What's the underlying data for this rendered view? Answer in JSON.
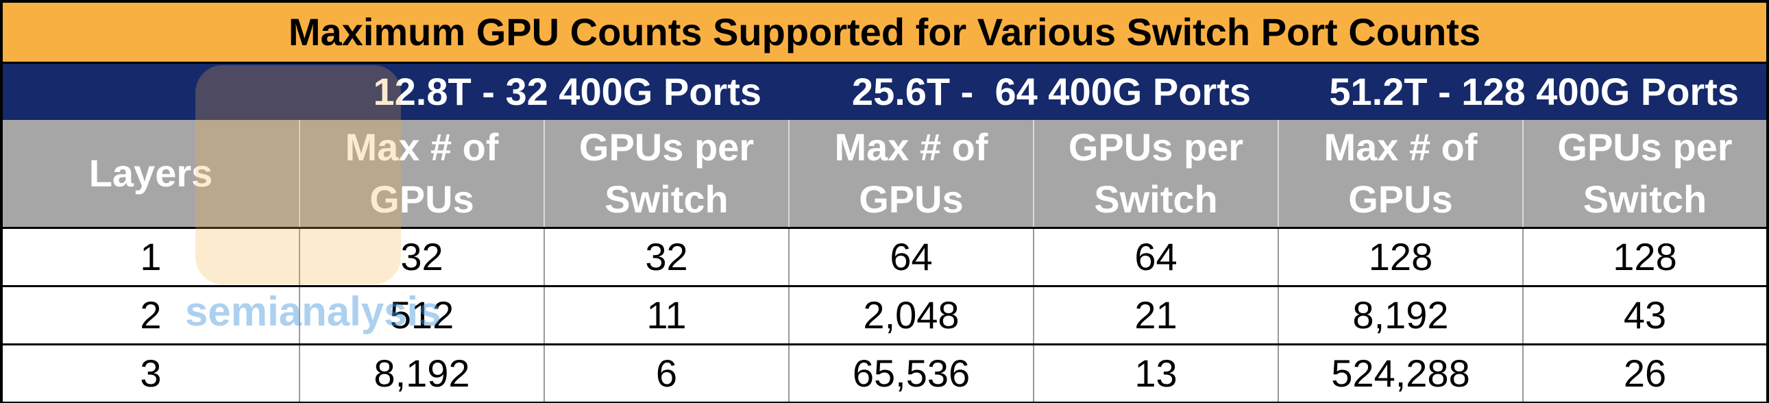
{
  "title": "Maximum GPU Counts Supported for Various Switch Port Counts",
  "groups": [
    "12.8T - 32 400G Ports",
    "25.6T -  64 400G Ports",
    "51.2T - 128 400G Ports"
  ],
  "header": [
    "Layers",
    "Max # of GPUs",
    "GPUs per Switch",
    "Max # of GPUs",
    "GPUs per Switch",
    "Max # of GPUs",
    "GPUs per Switch"
  ],
  "rows": [
    [
      "1",
      "32",
      "32",
      "64",
      "64",
      "128",
      "128"
    ],
    [
      "2",
      "512",
      "11",
      "2,048",
      "21",
      "8,192",
      "43"
    ],
    [
      "3",
      "8,192",
      "6",
      "65,536",
      "13",
      "524,288",
      "26"
    ]
  ],
  "watermark": "semianalysis"
}
